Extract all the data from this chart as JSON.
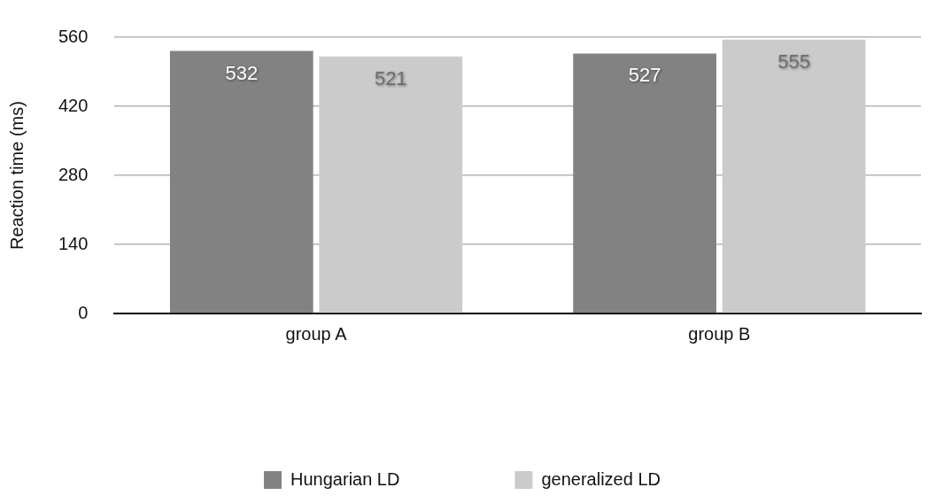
{
  "chart_data": {
    "type": "bar",
    "ylabel": "Reaction time (ms)",
    "categories": [
      "group A",
      "group B"
    ],
    "series": [
      {
        "name": "Hungarian LD",
        "color": "#828282",
        "values": [
          532,
          527
        ]
      },
      {
        "name": "generalized LD",
        "color": "#cbcbcb",
        "values": [
          521,
          555
        ]
      }
    ],
    "ylim": [
      0,
      560
    ],
    "yticks": [
      0,
      140,
      280,
      420,
      560
    ],
    "grid": "y",
    "legend": "bottom",
    "data_labels": true
  }
}
